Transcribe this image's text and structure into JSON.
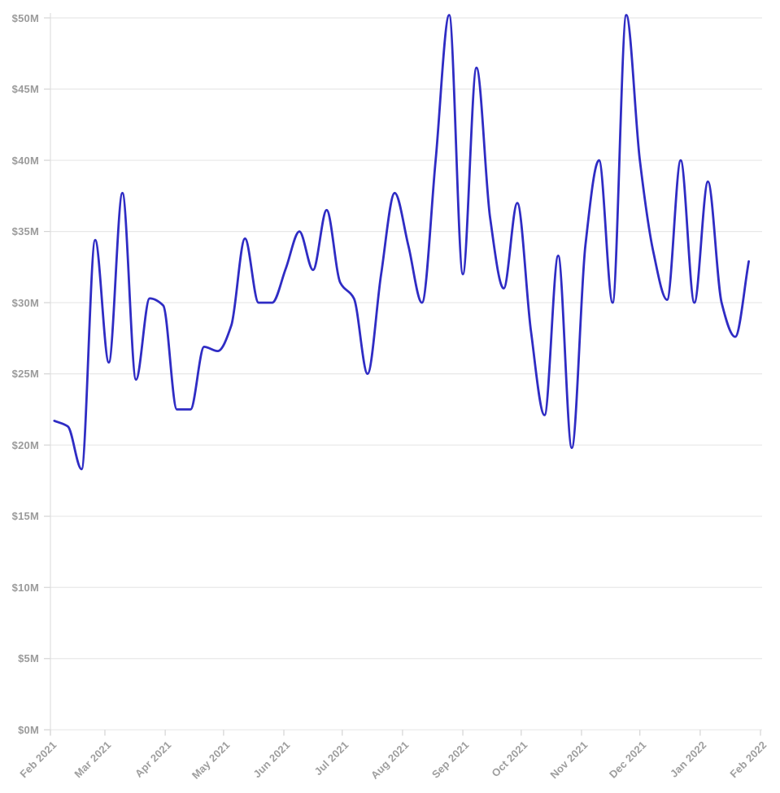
{
  "page": {
    "background": "#ffffff"
  },
  "chart_data": {
    "type": "line",
    "title": "",
    "unit": "USD millions",
    "legend": false,
    "grid": true,
    "y_axis": {
      "min": 0,
      "max": 50,
      "step": 5,
      "tick_labels": [
        "$0M",
        "$5M",
        "$10M",
        "$15M",
        "$20M",
        "$25M",
        "$30M",
        "$35M",
        "$40M",
        "$45M",
        "$50M"
      ]
    },
    "x_axis": {
      "range_days": 365,
      "tick_labels": [
        "Feb 2021",
        "Mar 2021",
        "Apr 2021",
        "May 2021",
        "Jun 2021",
        "Jul 2021",
        "Aug 2021",
        "Sep 2021",
        "Oct 2021",
        "Nov 2021",
        "Dec 2021",
        "Jan 2022",
        "Feb 2022"
      ],
      "tick_day_offsets": [
        0,
        28,
        59,
        89,
        120,
        150,
        181,
        212,
        242,
        273,
        303,
        334,
        365
      ]
    },
    "series": [
      {
        "name": "weekly-value",
        "start_day_offset": 2,
        "step_days": 7,
        "values": [
          21.7,
          21.3,
          18.3,
          34.4,
          25.8,
          37.7,
          24.6,
          30.3,
          29.8,
          22.5,
          22.5,
          26.9,
          26.6,
          28.4,
          34.5,
          30,
          30,
          32.4,
          35,
          32.3,
          36.5,
          31.4,
          30.3,
          25,
          32,
          37.7,
          34,
          30,
          40,
          50.2,
          32,
          46.5,
          36,
          31,
          37,
          28,
          22.1,
          33.3,
          19.8,
          34,
          40,
          30,
          50.2,
          40,
          33.5,
          30.2,
          40,
          30,
          38.5,
          30,
          27.6,
          32.9
        ]
      }
    ],
    "style": {
      "line_color": "#2f2cc4",
      "line_width": 2.8,
      "grid_color": "#e8e8e8",
      "axis_color": "#dedede",
      "tick_color": "#d4d4d4",
      "label_color": "#9b9b9b"
    }
  }
}
